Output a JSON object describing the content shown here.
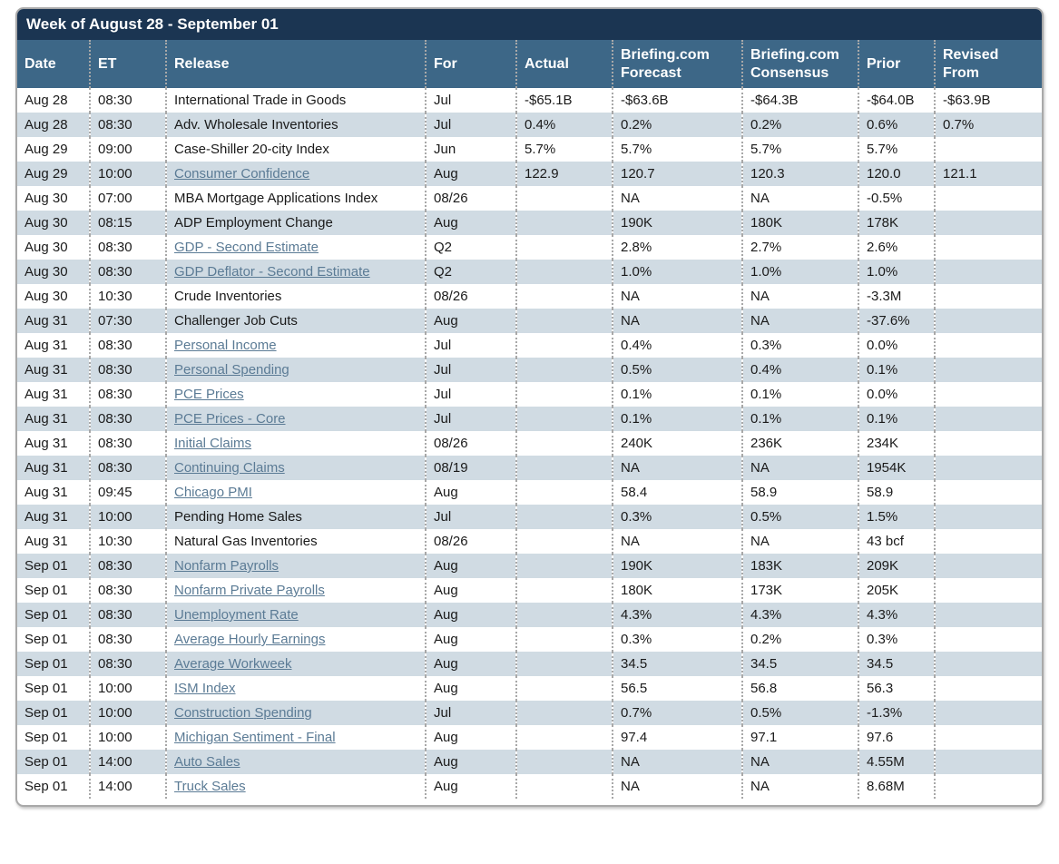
{
  "header": {
    "title": "Week of August 28 - September 01"
  },
  "colors": {
    "title_bar_bg": "#1b3552",
    "header_bg": "#3d6787",
    "row_alt_bg": "#d0dbe3",
    "link_color": "#5b7b95",
    "border_color": "#a9a9a9",
    "text_color": "#1a1a1a"
  },
  "table": {
    "columns": [
      "Date",
      "ET",
      "Release",
      "For",
      "Actual",
      "Briefing.com Forecast",
      "Briefing.com Consensus",
      "Prior",
      "Revised From"
    ],
    "rows": [
      {
        "date": "Aug 28",
        "et": "08:30",
        "release": "International Trade in Goods",
        "link": false,
        "for": "Jul",
        "actual": "-$65.1B",
        "forecast": "-$63.6B",
        "consensus": "-$64.3B",
        "prior": "-$64.0B",
        "revised_from": "-$63.9B"
      },
      {
        "date": "Aug 28",
        "et": "08:30",
        "release": "Adv. Wholesale Inventories",
        "link": false,
        "for": "Jul",
        "actual": "0.4%",
        "forecast": "0.2%",
        "consensus": "0.2%",
        "prior": "0.6%",
        "revised_from": "0.7%"
      },
      {
        "date": "Aug 29",
        "et": "09:00",
        "release": "Case-Shiller 20-city Index",
        "link": false,
        "for": "Jun",
        "actual": "5.7%",
        "forecast": "5.7%",
        "consensus": "5.7%",
        "prior": "5.7%",
        "revised_from": ""
      },
      {
        "date": "Aug 29",
        "et": "10:00",
        "release": "Consumer Confidence",
        "link": true,
        "for": "Aug",
        "actual": "122.9",
        "forecast": "120.7",
        "consensus": "120.3",
        "prior": "120.0",
        "revised_from": "121.1"
      },
      {
        "date": "Aug 30",
        "et": "07:00",
        "release": "MBA Mortgage Applications Index",
        "link": false,
        "for": "08/26",
        "actual": "",
        "forecast": "NA",
        "consensus": "NA",
        "prior": "-0.5%",
        "revised_from": ""
      },
      {
        "date": "Aug 30",
        "et": "08:15",
        "release": "ADP Employment Change",
        "link": false,
        "for": "Aug",
        "actual": "",
        "forecast": "190K",
        "consensus": "180K",
        "prior": "178K",
        "revised_from": ""
      },
      {
        "date": "Aug 30",
        "et": "08:30",
        "release": "GDP - Second Estimate",
        "link": true,
        "for": "Q2",
        "actual": "",
        "forecast": "2.8%",
        "consensus": "2.7%",
        "prior": "2.6%",
        "revised_from": ""
      },
      {
        "date": "Aug 30",
        "et": "08:30",
        "release": "GDP Deflator - Second Estimate",
        "link": true,
        "for": "Q2",
        "actual": "",
        "forecast": "1.0%",
        "consensus": "1.0%",
        "prior": "1.0%",
        "revised_from": ""
      },
      {
        "date": "Aug 30",
        "et": "10:30",
        "release": "Crude Inventories",
        "link": false,
        "for": "08/26",
        "actual": "",
        "forecast": "NA",
        "consensus": "NA",
        "prior": "-3.3M",
        "revised_from": ""
      },
      {
        "date": "Aug 31",
        "et": "07:30",
        "release": "Challenger Job Cuts",
        "link": false,
        "for": "Aug",
        "actual": "",
        "forecast": "NA",
        "consensus": "NA",
        "prior": "-37.6%",
        "revised_from": ""
      },
      {
        "date": "Aug 31",
        "et": "08:30",
        "release": "Personal Income",
        "link": true,
        "for": "Jul",
        "actual": "",
        "forecast": "0.4%",
        "consensus": "0.3%",
        "prior": "0.0%",
        "revised_from": ""
      },
      {
        "date": "Aug 31",
        "et": "08:30",
        "release": "Personal Spending",
        "link": true,
        "for": "Jul",
        "actual": "",
        "forecast": "0.5%",
        "consensus": "0.4%",
        "prior": "0.1%",
        "revised_from": ""
      },
      {
        "date": "Aug 31",
        "et": "08:30",
        "release": "PCE Prices",
        "link": true,
        "for": "Jul",
        "actual": "",
        "forecast": "0.1%",
        "consensus": "0.1%",
        "prior": "0.0%",
        "revised_from": ""
      },
      {
        "date": "Aug 31",
        "et": "08:30",
        "release": "PCE Prices - Core",
        "link": true,
        "for": "Jul",
        "actual": "",
        "forecast": "0.1%",
        "consensus": "0.1%",
        "prior": "0.1%",
        "revised_from": ""
      },
      {
        "date": "Aug 31",
        "et": "08:30",
        "release": "Initial Claims",
        "link": true,
        "for": "08/26",
        "actual": "",
        "forecast": "240K",
        "consensus": "236K",
        "prior": "234K",
        "revised_from": ""
      },
      {
        "date": "Aug 31",
        "et": "08:30",
        "release": "Continuing Claims",
        "link": true,
        "for": "08/19",
        "actual": "",
        "forecast": "NA",
        "consensus": "NA",
        "prior": "1954K",
        "revised_from": ""
      },
      {
        "date": "Aug 31",
        "et": "09:45",
        "release": "Chicago PMI",
        "link": true,
        "for": "Aug",
        "actual": "",
        "forecast": "58.4",
        "consensus": "58.9",
        "prior": "58.9",
        "revised_from": ""
      },
      {
        "date": "Aug 31",
        "et": "10:00",
        "release": "Pending Home Sales",
        "link": false,
        "for": "Jul",
        "actual": "",
        "forecast": "0.3%",
        "consensus": "0.5%",
        "prior": "1.5%",
        "revised_from": ""
      },
      {
        "date": "Aug 31",
        "et": "10:30",
        "release": "Natural Gas Inventories",
        "link": false,
        "for": "08/26",
        "actual": "",
        "forecast": "NA",
        "consensus": "NA",
        "prior": "43 bcf",
        "revised_from": ""
      },
      {
        "date": "Sep 01",
        "et": "08:30",
        "release": "Nonfarm Payrolls",
        "link": true,
        "for": "Aug",
        "actual": "",
        "forecast": "190K",
        "consensus": "183K",
        "prior": "209K",
        "revised_from": ""
      },
      {
        "date": "Sep 01",
        "et": "08:30",
        "release": "Nonfarm Private Payrolls",
        "link": true,
        "for": "Aug",
        "actual": "",
        "forecast": "180K",
        "consensus": "173K",
        "prior": "205K",
        "revised_from": ""
      },
      {
        "date": "Sep 01",
        "et": "08:30",
        "release": "Unemployment Rate",
        "link": true,
        "for": "Aug",
        "actual": "",
        "forecast": "4.3%",
        "consensus": "4.3%",
        "prior": "4.3%",
        "revised_from": ""
      },
      {
        "date": "Sep 01",
        "et": "08:30",
        "release": "Average Hourly Earnings",
        "link": true,
        "for": "Aug",
        "actual": "",
        "forecast": "0.3%",
        "consensus": "0.2%",
        "prior": "0.3%",
        "revised_from": ""
      },
      {
        "date": "Sep 01",
        "et": "08:30",
        "release": "Average Workweek",
        "link": true,
        "for": "Aug",
        "actual": "",
        "forecast": "34.5",
        "consensus": "34.5",
        "prior": "34.5",
        "revised_from": ""
      },
      {
        "date": "Sep 01",
        "et": "10:00",
        "release": "ISM Index",
        "link": true,
        "for": "Aug",
        "actual": "",
        "forecast": "56.5",
        "consensus": "56.8",
        "prior": "56.3",
        "revised_from": ""
      },
      {
        "date": "Sep 01",
        "et": "10:00",
        "release": "Construction Spending",
        "link": true,
        "for": "Jul",
        "actual": "",
        "forecast": "0.7%",
        "consensus": "0.5%",
        "prior": "-1.3%",
        "revised_from": ""
      },
      {
        "date": "Sep 01",
        "et": "10:00",
        "release": "Michigan Sentiment - Final",
        "link": true,
        "for": "Aug",
        "actual": "",
        "forecast": "97.4",
        "consensus": "97.1",
        "prior": "97.6",
        "revised_from": ""
      },
      {
        "date": "Sep 01",
        "et": "14:00",
        "release": "Auto Sales",
        "link": true,
        "for": "Aug",
        "actual": "",
        "forecast": "NA",
        "consensus": "NA",
        "prior": "4.55M",
        "revised_from": ""
      },
      {
        "date": "Sep 01",
        "et": "14:00",
        "release": "Truck Sales",
        "link": true,
        "for": "Aug",
        "actual": "",
        "forecast": "NA",
        "consensus": "NA",
        "prior": "8.68M",
        "revised_from": ""
      }
    ]
  }
}
